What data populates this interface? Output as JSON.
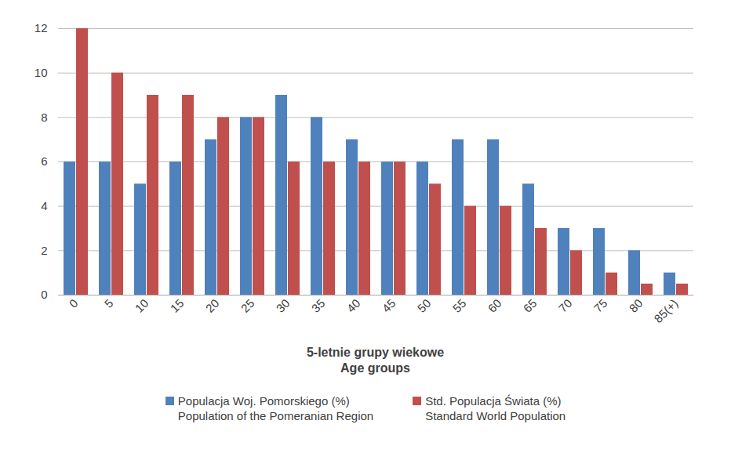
{
  "chart_data": {
    "type": "bar",
    "x_label": "5-letnie grupy wiekowe\nAge groups",
    "categories": [
      "0",
      "5",
      "10",
      "15",
      "20",
      "25",
      "30",
      "35",
      "40",
      "45",
      "50",
      "55",
      "60",
      "65",
      "70",
      "75",
      "80",
      "85(+)"
    ],
    "series": [
      {
        "name": "Populacja Woj. Pomorskiego (%)\nPopulation of the Pomeranian Region",
        "color": "#4f81bd",
        "values": [
          6,
          6,
          5,
          6,
          7,
          8,
          9,
          8,
          7,
          6,
          6,
          7,
          7,
          5,
          3,
          3,
          2,
          1
        ]
      },
      {
        "name": "Std. Populacja Świata (%)\nStandard World Population",
        "color": "#c0504d",
        "values": [
          12,
          10,
          9,
          9,
          8,
          8,
          6,
          6,
          6,
          6,
          5,
          4,
          4,
          3,
          2,
          1,
          0.5,
          0.5
        ]
      }
    ],
    "ylim": [
      0,
      12
    ],
    "yticks": [
      0,
      2,
      4,
      6,
      8,
      10,
      12
    ],
    "grid": true,
    "legend": "bottom"
  }
}
